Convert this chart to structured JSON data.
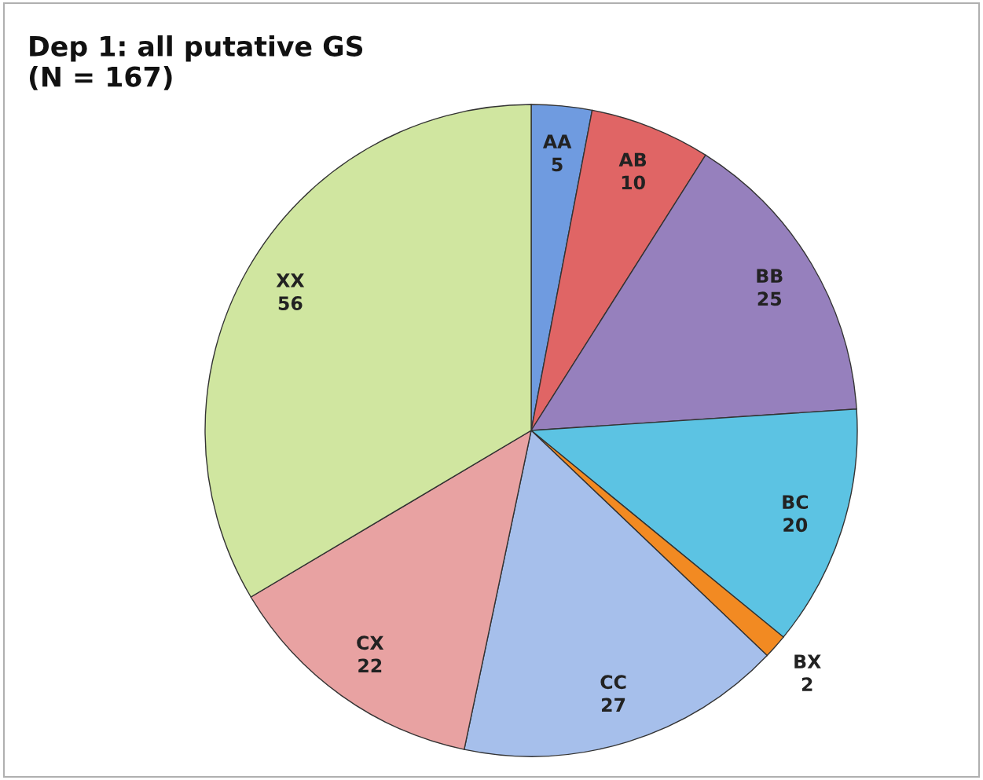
{
  "chart_data": {
    "type": "pie",
    "title": "Dep 1: all putative GS\n(N = 167)",
    "categories": [
      "AA",
      "AB",
      "BB",
      "BC",
      "BX",
      "CC",
      "CX",
      "XX"
    ],
    "values": [
      5,
      10,
      25,
      20,
      2,
      27,
      22,
      56
    ],
    "colors": [
      "#6f9be0",
      "#e06565",
      "#9680bd",
      "#5cc3e3",
      "#f28a22",
      "#a6bfeb",
      "#e8a2a2",
      "#d0e6a0"
    ],
    "data_labels": true
  }
}
